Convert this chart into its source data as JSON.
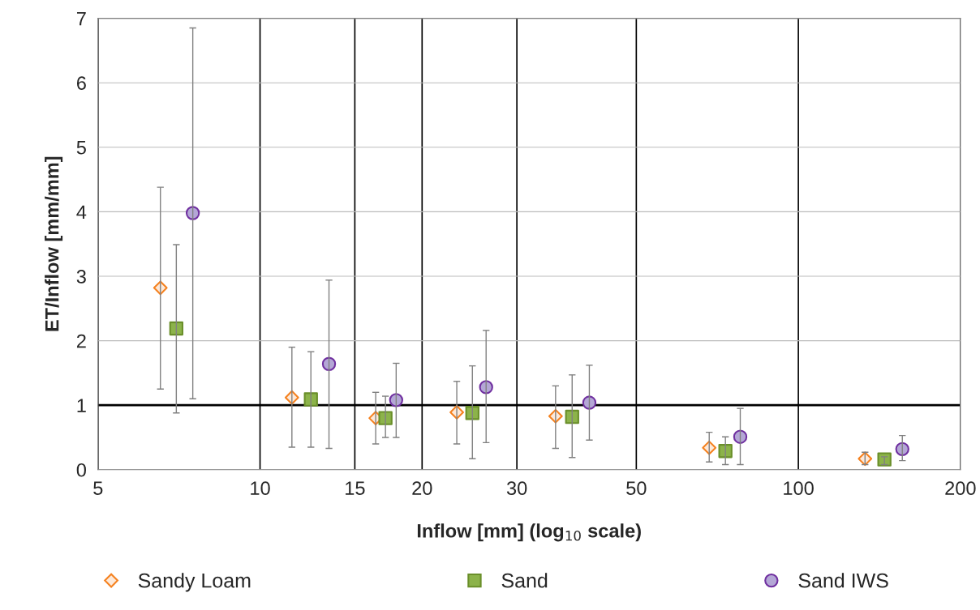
{
  "chart_data": {
    "type": "scatter",
    "xlabel": "Inflow [mm] (log$_{10}$ scale)",
    "ylabel": "ET/Inflow [mm/mm]",
    "log": "x",
    "xlim": [
      5,
      200
    ],
    "xticks": [
      5,
      10,
      15,
      20,
      30,
      50,
      100,
      200
    ],
    "ylim": [
      0,
      7
    ],
    "yticks": [
      0,
      1,
      2,
      3,
      4,
      5,
      6,
      7
    ],
    "grid": true,
    "legend": "bottom",
    "ref_lines": [
      {
        "axis": "y",
        "value": 1,
        "color": "#000000"
      }
    ],
    "series": [
      {
        "name": "Sandy Loam",
        "color": "#f58220",
        "marker": "diamond",
        "x": [
          6.53,
          11.46,
          16.4,
          23.2,
          35.4,
          68.3,
          133
        ],
        "values": [
          2.82,
          1.12,
          0.8,
          0.89,
          0.83,
          0.34,
          0.17
        ],
        "errors": [
          [
            1.25,
            4.38
          ],
          [
            0.35,
            1.9
          ],
          [
            0.4,
            1.2
          ],
          [
            0.4,
            1.37
          ],
          [
            0.33,
            1.3
          ],
          [
            0.12,
            0.58
          ],
          [
            0.08,
            0.27
          ]
        ]
      },
      {
        "name": "Sand",
        "color": "#8cb34a",
        "marker": "square",
        "x": [
          6.99,
          12.43,
          17.1,
          24.8,
          38.0,
          73.2,
          144.5
        ],
        "values": [
          2.19,
          1.09,
          0.8,
          0.88,
          0.82,
          0.29,
          0.16
        ],
        "errors": [
          [
            0.88,
            3.49
          ],
          [
            0.35,
            1.83
          ],
          [
            0.5,
            1.14
          ],
          [
            0.17,
            1.61
          ],
          [
            0.19,
            1.47
          ],
          [
            0.08,
            0.51
          ],
          [
            0.08,
            0.2
          ]
        ]
      },
      {
        "name": "Sand IWS",
        "color": "#b4a7d6",
        "marker": "circle",
        "x": [
          7.5,
          13.43,
          17.9,
          26.3,
          40.9,
          78.0,
          156
        ],
        "values": [
          3.98,
          1.64,
          1.08,
          1.28,
          1.04,
          0.51,
          0.32
        ],
        "errors": [
          [
            1.1,
            6.85
          ],
          [
            0.33,
            2.94
          ],
          [
            0.5,
            1.65
          ],
          [
            0.42,
            2.16
          ],
          [
            0.46,
            1.62
          ],
          [
            0.08,
            0.95
          ],
          [
            0.14,
            0.53
          ]
        ]
      }
    ]
  }
}
